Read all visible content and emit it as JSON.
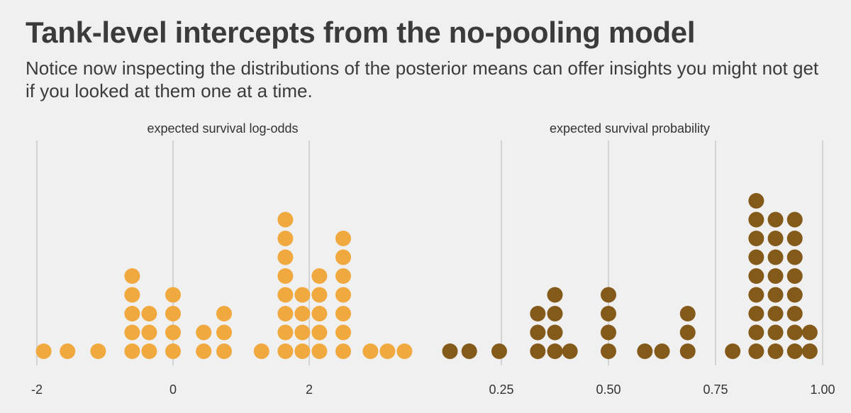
{
  "title": "Tank-level intercepts from the no-pooling model",
  "subtitle": "Notice now inspecting the distributions of the posterior means can offer insights you might not get if you looked at them one at a time.",
  "colors": {
    "background": "#f0f0f0",
    "gridline": "#d3d3d3",
    "log_odds_dots": "#f0a93f",
    "probability_dots": "#845a1a"
  },
  "chart_data": [
    {
      "type": "dotplot",
      "title": "expected survival log-odds",
      "xlabel": "",
      "ylabel": "",
      "xlim": [
        -2.1,
        3.55
      ],
      "x_ticks": [
        -2,
        0,
        2
      ],
      "x_tick_labels": [
        "-2",
        "0",
        "2"
      ],
      "grid": true,
      "dot_color": "#f0a93f",
      "stacks": [
        {
          "x": -1.9,
          "count": 1
        },
        {
          "x": -1.55,
          "count": 1
        },
        {
          "x": -1.1,
          "count": 1
        },
        {
          "x": -0.6,
          "count": 5
        },
        {
          "x": -0.35,
          "count": 3
        },
        {
          "x": 0.0,
          "count": 4
        },
        {
          "x": 0.45,
          "count": 2
        },
        {
          "x": 0.75,
          "count": 3
        },
        {
          "x": 1.3,
          "count": 1
        },
        {
          "x": 1.65,
          "count": 8
        },
        {
          "x": 1.9,
          "count": 4
        },
        {
          "x": 2.15,
          "count": 5
        },
        {
          "x": 2.5,
          "count": 7
        },
        {
          "x": 2.9,
          "count": 1
        },
        {
          "x": 3.15,
          "count": 1
        },
        {
          "x": 3.4,
          "count": 1
        }
      ]
    },
    {
      "type": "dotplot",
      "title": "expected survival probability",
      "xlabel": "",
      "ylabel": "",
      "xlim": [
        0.1,
        1.02
      ],
      "x_ticks": [
        0.25,
        0.5,
        0.75,
        1.0
      ],
      "x_tick_labels": [
        "0.25",
        "0.50",
        "0.75",
        "1.00"
      ],
      "grid": true,
      "dot_color": "#845a1a",
      "stacks": [
        {
          "x": 0.13,
          "count": 1
        },
        {
          "x": 0.175,
          "count": 1
        },
        {
          "x": 0.245,
          "count": 1
        },
        {
          "x": 0.335,
          "count": 3
        },
        {
          "x": 0.375,
          "count": 4
        },
        {
          "x": 0.41,
          "count": 1
        },
        {
          "x": 0.5,
          "count": 4
        },
        {
          "x": 0.585,
          "count": 1
        },
        {
          "x": 0.625,
          "count": 1
        },
        {
          "x": 0.685,
          "count": 3
        },
        {
          "x": 0.79,
          "count": 1
        },
        {
          "x": 0.845,
          "count": 9
        },
        {
          "x": 0.89,
          "count": 8
        },
        {
          "x": 0.935,
          "count": 8
        },
        {
          "x": 0.97,
          "count": 2
        }
      ]
    }
  ]
}
